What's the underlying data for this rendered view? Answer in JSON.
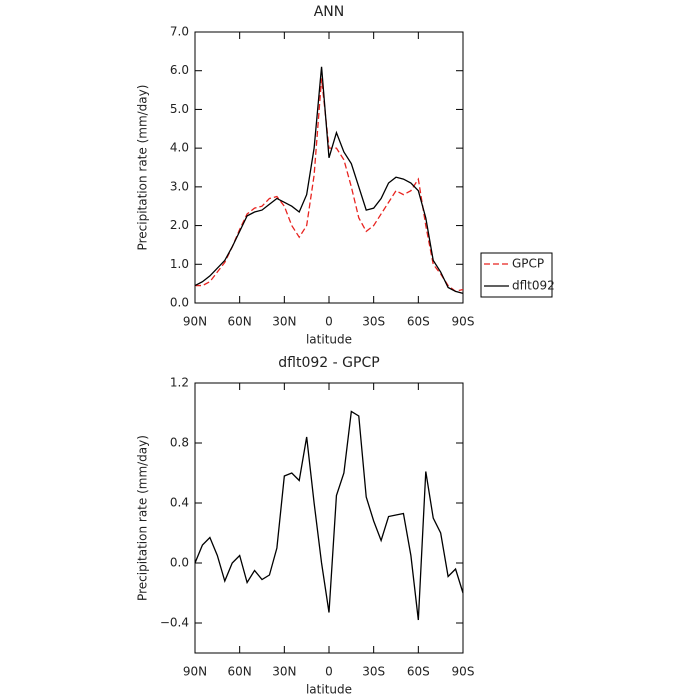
{
  "chart_data": [
    {
      "type": "line",
      "title": "ANN",
      "xlabel": "latitude",
      "ylabel": "Precipitation rate (mm/day)",
      "x": [
        90,
        85,
        80,
        75,
        70,
        65,
        60,
        55,
        50,
        45,
        40,
        35,
        30,
        25,
        20,
        15,
        10,
        5,
        0,
        -5,
        -10,
        -15,
        -20,
        -25,
        -30,
        -35,
        -40,
        -45,
        -50,
        -55,
        -60,
        -65,
        -70,
        -75,
        -80,
        -85,
        -90
      ],
      "series": [
        {
          "name": "GPCP",
          "color": "#e8231f",
          "style": "dashed",
          "values": [
            0.45,
            0.45,
            0.55,
            0.8,
            1.05,
            1.45,
            1.9,
            2.3,
            2.45,
            2.5,
            2.7,
            2.75,
            2.5,
            2.0,
            1.7,
            2.0,
            3.3,
            5.8,
            4.0,
            4.0,
            3.7,
            3.0,
            2.2,
            1.85,
            2.0,
            2.3,
            2.6,
            2.9,
            2.8,
            2.9,
            3.2,
            2.0,
            1.0,
            0.75,
            0.45,
            0.3,
            0.35
          ]
        },
        {
          "name": "dflt092",
          "color": "#000000",
          "style": "solid",
          "values": [
            0.45,
            0.55,
            0.7,
            0.9,
            1.1,
            1.45,
            1.85,
            2.25,
            2.35,
            2.4,
            2.55,
            2.7,
            2.6,
            2.5,
            2.35,
            2.8,
            4.0,
            6.1,
            3.75,
            4.4,
            3.9,
            3.6,
            3.0,
            2.4,
            2.45,
            2.7,
            3.1,
            3.25,
            3.2,
            3.1,
            2.9,
            2.2,
            1.1,
            0.8,
            0.4,
            0.3,
            0.25
          ]
        }
      ],
      "xlim": [
        90,
        -90
      ],
      "xticks": [
        {
          "value": 90,
          "label": "90N"
        },
        {
          "value": 60,
          "label": "60N"
        },
        {
          "value": 30,
          "label": "30N"
        },
        0,
        {
          "value": -30,
          "label": "30S"
        },
        {
          "value": -60,
          "label": "60S"
        },
        {
          "value": -90,
          "label": "90S"
        }
      ],
      "ylim": [
        0,
        7
      ],
      "yticks": [
        {
          "value": 0,
          "label": "0.0"
        },
        {
          "value": 1,
          "label": "1.0"
        },
        {
          "value": 2,
          "label": "2.0"
        },
        {
          "value": 3,
          "label": "3.0"
        },
        {
          "value": 4,
          "label": "4.0"
        },
        {
          "value": 5,
          "label": "5.0"
        },
        {
          "value": 6,
          "label": "6.0"
        },
        {
          "value": 7,
          "label": "7.0"
        }
      ],
      "legend": "right"
    },
    {
      "type": "line",
      "title": "dflt092 - GPCP",
      "xlabel": "latitude",
      "ylabel": "Precipitation rate (mm/day)",
      "x": [
        90,
        85,
        80,
        75,
        70,
        65,
        60,
        55,
        50,
        45,
        40,
        35,
        30,
        25,
        20,
        15,
        10,
        5,
        0,
        -5,
        -10,
        -15,
        -20,
        -25,
        -30,
        -35,
        -40,
        -45,
        -50,
        -55,
        -60,
        -65,
        -70,
        -75,
        -80,
        -85,
        -90
      ],
      "series": [
        {
          "color": "#000000",
          "style": "solid",
          "values": [
            0.0,
            0.12,
            0.17,
            0.05,
            -0.12,
            0.0,
            0.05,
            -0.13,
            -0.05,
            -0.11,
            -0.08,
            0.1,
            0.58,
            0.6,
            0.55,
            0.84,
            0.4,
            0.0,
            -0.33,
            0.45,
            0.6,
            1.01,
            0.98,
            0.44,
            0.28,
            0.15,
            0.31,
            0.32,
            0.33,
            0.05,
            -0.38,
            0.61,
            0.3,
            0.2,
            -0.09,
            -0.04,
            -0.2
          ]
        }
      ],
      "xlim": [
        90,
        -90
      ],
      "xticks": [
        {
          "value": 90,
          "label": "90N"
        },
        {
          "value": 60,
          "label": "60N"
        },
        {
          "value": 30,
          "label": "30N"
        },
        0,
        {
          "value": -30,
          "label": "30S"
        },
        {
          "value": -60,
          "label": "60S"
        },
        {
          "value": -90,
          "label": "90S"
        }
      ],
      "ylim": [
        -0.6,
        1.2
      ],
      "yticks": [
        {
          "value": -0.4,
          "label": "−0.4"
        },
        {
          "value": 0,
          "label": "0.0"
        },
        0.4,
        0.8,
        1.2
      ]
    }
  ]
}
